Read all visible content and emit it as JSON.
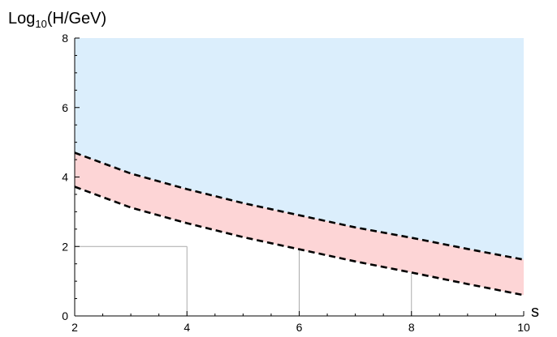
{
  "chart_data": {
    "type": "area",
    "xlabel": "s",
    "ylabel": "Log",
    "ylabel_sub": "10",
    "ylabel_tail": "(H/GeV)",
    "xlim": [
      2,
      10
    ],
    "ylim": [
      0,
      8
    ],
    "x_ticks": [
      "2",
      "4",
      "6",
      "8",
      "10"
    ],
    "y_ticks": [
      "0",
      "2",
      "4",
      "6",
      "8"
    ],
    "x": [
      2,
      3,
      4,
      5,
      6,
      7,
      8,
      9,
      10
    ],
    "upper_bound": [
      4.7,
      4.1,
      3.65,
      3.25,
      2.9,
      2.55,
      2.25,
      1.93,
      1.62
    ],
    "lower_bound": [
      3.72,
      3.12,
      2.67,
      2.27,
      1.92,
      1.57,
      1.25,
      0.92,
      0.6
    ],
    "reference_lines": [
      {
        "x": 4,
        "y": 2
      },
      {
        "x": 6
      },
      {
        "x": 8
      }
    ],
    "colors": {
      "upper_region": "#dbeefc",
      "band_region": "#fdd5d6",
      "boundary": "#000000",
      "reference": "#aaaaaa"
    }
  }
}
